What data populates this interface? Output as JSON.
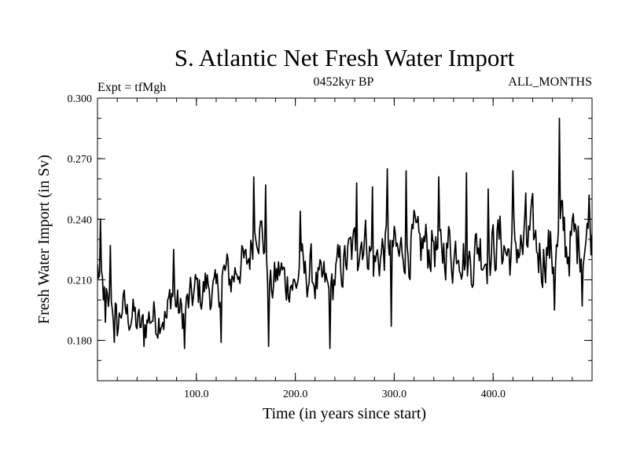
{
  "chart_data": {
    "type": "line",
    "title": "S. Atlantic Net Fresh Water Import",
    "subtitle": "0452kyr BP",
    "expt_label": "Expt = tfMgh",
    "months_label": "ALL_MONTHS",
    "xlabel": "Time (in years since start)",
    "ylabel": "Fresh Water Import (in Sv)",
    "xlim": [
      0,
      500
    ],
    "ylim": [
      0.16,
      0.3
    ],
    "x_ticks": [
      {
        "value": 100,
        "label": "100.0"
      },
      {
        "value": 200,
        "label": "200.0"
      },
      {
        "value": 300,
        "label": "300.0"
      },
      {
        "value": 400,
        "label": "400.0"
      }
    ],
    "y_ticks": [
      {
        "value": 0.18,
        "label": "0.180"
      },
      {
        "value": 0.21,
        "label": "0.210"
      },
      {
        "value": 0.24,
        "label": "0.240"
      },
      {
        "value": 0.27,
        "label": "0.270"
      },
      {
        "value": 0.3,
        "label": "0.300"
      }
    ],
    "x_minor_step": 20,
    "y_minor_step": 0.01,
    "grid": false,
    "color": "#000000",
    "series": [
      {
        "x": [
          0,
          5,
          10,
          15,
          20,
          25,
          30,
          35,
          40,
          45,
          50,
          55,
          60,
          65,
          70,
          75,
          80,
          85,
          90,
          95,
          100,
          105,
          110,
          115,
          120,
          125,
          130,
          135,
          140,
          145,
          150,
          155,
          160,
          165,
          170,
          175,
          180,
          185,
          190,
          195,
          200,
          205,
          210,
          215,
          220,
          225,
          230,
          235,
          240,
          245,
          250,
          255,
          260,
          265,
          270,
          275,
          280,
          285,
          290,
          295,
          300,
          305,
          310,
          315,
          320,
          325,
          330,
          335,
          340,
          345,
          350,
          355,
          360,
          365,
          370,
          375,
          380,
          385,
          390,
          395,
          400,
          405,
          410,
          415,
          420,
          425,
          430,
          435,
          440,
          445,
          450,
          455,
          460,
          465,
          470,
          475,
          480,
          485,
          490,
          495,
          500
        ],
        "y": [
          0.215,
          0.205,
          0.195,
          0.2,
          0.185,
          0.198,
          0.192,
          0.194,
          0.188,
          0.185,
          0.19,
          0.193,
          0.191,
          0.195,
          0.19,
          0.205,
          0.198,
          0.192,
          0.196,
          0.2,
          0.205,
          0.203,
          0.208,
          0.205,
          0.2,
          0.21,
          0.213,
          0.21,
          0.215,
          0.22,
          0.215,
          0.225,
          0.24,
          0.235,
          0.225,
          0.205,
          0.21,
          0.215,
          0.208,
          0.212,
          0.205,
          0.218,
          0.21,
          0.215,
          0.21,
          0.205,
          0.208,
          0.2,
          0.212,
          0.215,
          0.218,
          0.222,
          0.225,
          0.23,
          0.232,
          0.225,
          0.218,
          0.222,
          0.225,
          0.23,
          0.225,
          0.22,
          0.228,
          0.225,
          0.23,
          0.222,
          0.228,
          0.225,
          0.23,
          0.22,
          0.225,
          0.228,
          0.222,
          0.23,
          0.225,
          0.218,
          0.222,
          0.228,
          0.225,
          0.22,
          0.225,
          0.23,
          0.228,
          0.222,
          0.226,
          0.228,
          0.224,
          0.228,
          0.232,
          0.225,
          0.222,
          0.228,
          0.22,
          0.226,
          0.235,
          0.225,
          0.23,
          0.228,
          0.232,
          0.23,
          0.235
        ],
        "peaks": [
          {
            "x": 3,
            "y": 0.24
          },
          {
            "x": 13,
            "y": 0.227
          },
          {
            "x": 8,
            "y": 0.189
          },
          {
            "x": 17,
            "y": 0.179
          },
          {
            "x": 47,
            "y": 0.177
          },
          {
            "x": 88,
            "y": 0.176
          },
          {
            "x": 77,
            "y": 0.225
          },
          {
            "x": 125,
            "y": 0.179
          },
          {
            "x": 158,
            "y": 0.261
          },
          {
            "x": 170,
            "y": 0.257
          },
          {
            "x": 173,
            "y": 0.177
          },
          {
            "x": 205,
            "y": 0.244
          },
          {
            "x": 235,
            "y": 0.176
          },
          {
            "x": 262,
            "y": 0.258
          },
          {
            "x": 278,
            "y": 0.256
          },
          {
            "x": 293,
            "y": 0.265
          },
          {
            "x": 297,
            "y": 0.187
          },
          {
            "x": 312,
            "y": 0.264
          },
          {
            "x": 345,
            "y": 0.261
          },
          {
            "x": 373,
            "y": 0.263
          },
          {
            "x": 395,
            "y": 0.255
          },
          {
            "x": 420,
            "y": 0.264
          },
          {
            "x": 433,
            "y": 0.253
          },
          {
            "x": 462,
            "y": 0.195
          },
          {
            "x": 467,
            "y": 0.29
          },
          {
            "x": 472,
            "y": 0.241
          },
          {
            "x": 490,
            "y": 0.197
          },
          {
            "x": 497,
            "y": 0.252
          }
        ]
      }
    ]
  }
}
